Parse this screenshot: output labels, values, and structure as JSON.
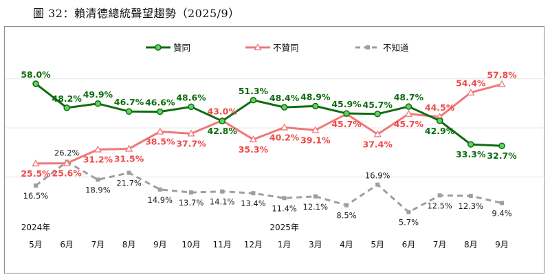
{
  "caption": "圖 32：賴清德總統聲望趨勢（2025/9）",
  "colors": {
    "approve": "#0f6b0f",
    "approve_marker": "#5cd65c",
    "disapprove": "#f07878",
    "unknown": "#9e9e9e"
  },
  "chart_data": {
    "type": "line",
    "categories": [
      "5月",
      "6月",
      "7月",
      "8月",
      "9月",
      "10月",
      "11月",
      "12月",
      "1月",
      "3月",
      "4月",
      "5月",
      "6月",
      "7月",
      "8月",
      "9月"
    ],
    "year_labels": [
      {
        "text": "2024年",
        "category_index": 0
      },
      {
        "text": "2025年",
        "category_index": 8
      }
    ],
    "ylim": [
      0,
      70
    ],
    "grid": true,
    "legend_position": "top",
    "series": [
      {
        "name": "贊同",
        "color_key": "approve",
        "values": [
          58.0,
          48.2,
          49.9,
          46.7,
          46.6,
          48.6,
          42.8,
          51.3,
          48.4,
          48.9,
          45.9,
          45.7,
          48.7,
          42.9,
          33.3,
          32.7
        ],
        "labels": [
          "58.0%",
          "48.2%",
          "49.9%",
          "46.7%",
          "46.6%",
          "48.6%",
          "42.8%",
          "51.3%",
          "48.4%",
          "48.9%",
          "45.9%",
          "45.7%",
          "48.7%",
          "42.9%",
          "33.3%",
          "32.7%"
        ]
      },
      {
        "name": "不贊同",
        "color_key": "disapprove",
        "values": [
          25.5,
          25.6,
          31.2,
          31.5,
          38.5,
          37.7,
          43.0,
          35.3,
          40.2,
          39.1,
          45.7,
          37.4,
          45.7,
          44.5,
          54.4,
          57.8
        ],
        "labels": [
          "25.5%",
          "25.6%",
          "31.2%",
          "31.5%",
          "38.5%",
          "37.7%",
          "43.0%",
          "35.3%",
          "40.2%",
          "39.1%",
          "45.7%",
          "37.4%",
          "45.7%",
          "44.5%",
          "54.4%",
          "57.8%"
        ]
      },
      {
        "name": "不知道",
        "color_key": "unknown",
        "values": [
          16.5,
          26.2,
          18.9,
          21.7,
          14.9,
          13.7,
          14.1,
          13.4,
          11.4,
          12.1,
          8.5,
          16.9,
          5.7,
          12.5,
          12.3,
          9.4
        ],
        "labels": [
          "16.5%",
          "26.2%",
          "18.9%",
          "21.7%",
          "14.9%",
          "13.7%",
          "14.1%",
          "13.4%",
          "11.4%",
          "12.1%",
          "8.5%",
          "16.9%",
          "5.7%",
          "12.5%",
          "12.3%",
          "9.4%"
        ]
      }
    ]
  }
}
